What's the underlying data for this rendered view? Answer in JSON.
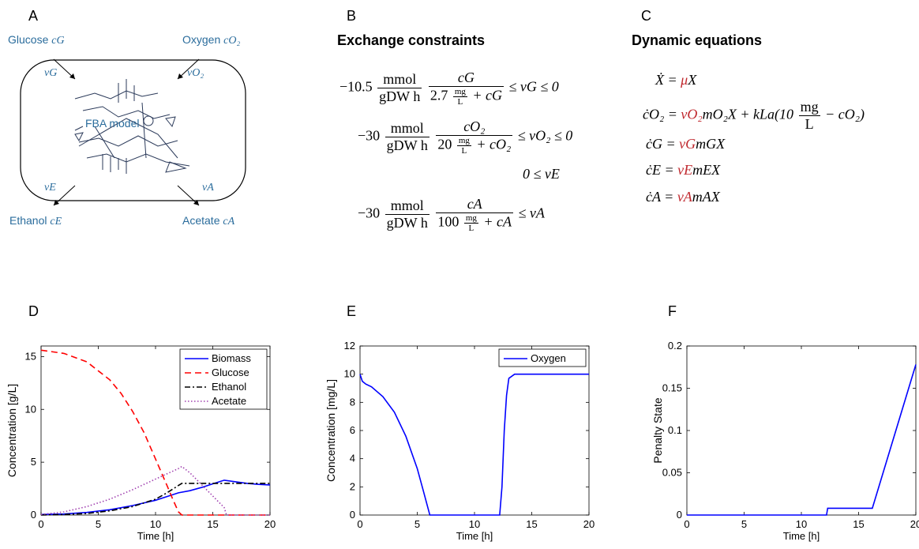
{
  "panels": {
    "a": "A",
    "b": "B",
    "c": "C",
    "d": "D",
    "e": "E",
    "f": "F"
  },
  "diagram": {
    "glucose": "Glucose",
    "glucose_var": "cG",
    "oxygen": "Oxygen",
    "oxygen_var": "cO₂",
    "ethanol": "Ethanol",
    "ethanol_var": "cE",
    "acetate": "Acetate",
    "acetate_var": "cA",
    "vG": "vG",
    "vO2": "vO₂",
    "vE": "vE",
    "vA": "vA",
    "model": "FBA model"
  },
  "exchange": {
    "title": "Exchange constraints",
    "eq1": {
      "coef": "−10.5",
      "unit_num": "mmol",
      "unit_den": "gDW h",
      "num": "cG",
      "den_a": "2.7",
      "den_u_num": "mg",
      "den_u_den": "L",
      "den_b": "+ cG",
      "rhs": "≤ vG ≤ 0"
    },
    "eq2": {
      "coef": "−30",
      "unit_num": "mmol",
      "unit_den": "gDW h",
      "num": "cO₂",
      "den_a": "20",
      "den_u_num": "mg",
      "den_u_den": "L",
      "den_b": "+ cO₂",
      "rhs": "≤ vO₂ ≤ 0"
    },
    "eq3": "0 ≤ vE",
    "eq4": {
      "coef": "−30",
      "unit_num": "mmol",
      "unit_den": "gDW h",
      "num": "cA",
      "den_a": "100",
      "den_u_num": "mg",
      "den_u_den": "L",
      "den_b": "+ cA",
      "rhs": "≤ vA"
    }
  },
  "dynamic": {
    "title": "Dynamic equations",
    "eq1_lhs": "Ẋ = ",
    "eq1_red": "μ",
    "eq1_rest": "X",
    "eq2_lhs": "ċO₂ = ",
    "eq2_red": "vO₂",
    "eq2_rest": "mO₂X + kLa(10",
    "eq2_frac_num": "mg",
    "eq2_frac_den": "L",
    "eq2_tail": "− cO₂)",
    "eq3_lhs": "ċG = ",
    "eq3_red": "vG",
    "eq3_rest": "mGX",
    "eq4_lhs": "ċE = ",
    "eq4_red": "vE",
    "eq4_rest": "mEX",
    "eq5_lhs": "ċA = ",
    "eq5_red": "vA",
    "eq5_rest": "mAX"
  },
  "chart_data": [
    {
      "type": "line",
      "xlabel": "Time [h]",
      "ylabel": "Concentration [g/L]",
      "xlim": [
        0,
        20
      ],
      "ylim": [
        0,
        16
      ],
      "xticks": [
        0,
        5,
        10,
        15,
        20
      ],
      "yticks": [
        0,
        5,
        10,
        15
      ],
      "legend": "top-right",
      "series": [
        {
          "name": "Biomass",
          "color": "#0000ff",
          "dash": "",
          "x": [
            0,
            2,
            4,
            6,
            8,
            10,
            11,
            12,
            13,
            14,
            15,
            16,
            17,
            18,
            19,
            20
          ],
          "y": [
            0.05,
            0.1,
            0.25,
            0.5,
            0.9,
            1.4,
            1.75,
            2.1,
            2.3,
            2.6,
            2.95,
            3.3,
            3.15,
            3.0,
            2.9,
            2.85
          ]
        },
        {
          "name": "Glucose",
          "color": "#ff0000",
          "dash": "8,5",
          "x": [
            0,
            2,
            4,
            6,
            7,
            8,
            9,
            10,
            11,
            11.5,
            12,
            12.3,
            13,
            14,
            15,
            16,
            17,
            18,
            19,
            20
          ],
          "y": [
            15.6,
            15.3,
            14.5,
            12.8,
            11.5,
            9.8,
            7.8,
            5.3,
            2.8,
            1.5,
            0.3,
            0,
            0,
            0,
            0,
            0,
            0,
            0,
            0,
            0
          ]
        },
        {
          "name": "Ethanol",
          "color": "#000000",
          "dash": "7,3,2,3",
          "x": [
            0,
            2,
            4,
            6,
            8,
            10,
            11,
            12,
            12.3,
            13,
            14,
            15,
            16,
            17,
            18,
            19,
            20
          ],
          "y": [
            0,
            0.05,
            0.15,
            0.4,
            0.8,
            1.5,
            2.1,
            2.8,
            3.0,
            3.0,
            3.0,
            3.0,
            3.0,
            3.0,
            3.0,
            3.0,
            3.0
          ]
        },
        {
          "name": "Acetate",
          "color": "#a040b0",
          "dash": "1.5,2.5",
          "x": [
            0,
            2,
            4,
            6,
            8,
            10,
            11,
            12,
            12.3,
            13,
            14,
            15,
            16,
            16.2,
            17,
            18,
            19,
            20
          ],
          "y": [
            0.05,
            0.3,
            0.8,
            1.5,
            2.4,
            3.4,
            3.9,
            4.4,
            4.6,
            4.0,
            2.9,
            1.8,
            0.7,
            0,
            0,
            0,
            0,
            0
          ]
        }
      ]
    },
    {
      "type": "line",
      "xlabel": "Time [h]",
      "ylabel": "Concentration [mg/L]",
      "xlim": [
        0,
        20
      ],
      "ylim": [
        0,
        12
      ],
      "xticks": [
        0,
        5,
        10,
        15,
        20
      ],
      "yticks": [
        0,
        2,
        4,
        6,
        8,
        10,
        12
      ],
      "legend": "top-right",
      "series": [
        {
          "name": "Oxygen",
          "color": "#0000ff",
          "dash": "",
          "x": [
            0,
            0.2,
            0.5,
            1,
            2,
            3,
            4,
            5,
            5.5,
            6,
            6.1,
            12.2,
            12.4,
            12.6,
            12.8,
            13,
            13.5,
            14,
            20
          ],
          "y": [
            10,
            9.5,
            9.3,
            9.1,
            8.4,
            7.3,
            5.6,
            3.3,
            1.8,
            0.3,
            0,
            0,
            2,
            6,
            8.5,
            9.7,
            10,
            10,
            10
          ]
        }
      ]
    },
    {
      "type": "line",
      "xlabel": "Time [h]",
      "ylabel": "Penalty State",
      "xlim": [
        0,
        20
      ],
      "ylim": [
        0,
        0.2
      ],
      "xticks": [
        0,
        5,
        10,
        15,
        20
      ],
      "yticks": [
        0,
        0.05,
        0.1,
        0.15,
        0.2
      ],
      "series": [
        {
          "name": "",
          "color": "#0000ff",
          "dash": "",
          "x": [
            0,
            12.2,
            12.3,
            16.2,
            20
          ],
          "y": [
            0,
            0,
            0.008,
            0.008,
            0.178
          ]
        }
      ]
    }
  ]
}
